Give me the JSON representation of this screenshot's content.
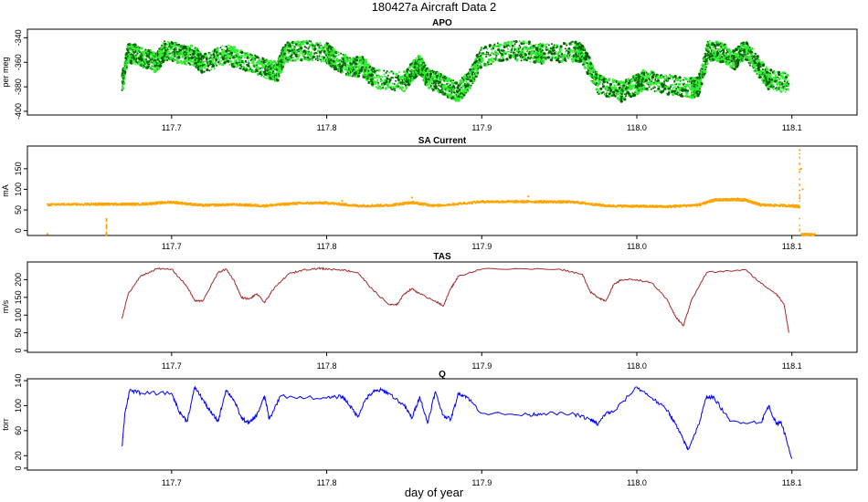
{
  "figure": {
    "title": "180427a   Aircraft Data 2",
    "xlabel": "day of year",
    "x_ticks": [
      "117.7",
      "117.8",
      "117.9",
      "118.0",
      "118.1"
    ],
    "x_tick_values": [
      117.7,
      117.8,
      117.9,
      118.0,
      118.1
    ]
  },
  "chart_data": [
    {
      "type": "scatter",
      "title": "APO",
      "ylabel": "per meg",
      "xlim": [
        117.607,
        118.142
      ],
      "ylim": [
        -403,
        -333
      ],
      "yticks": [
        -400,
        -380,
        -360,
        -340
      ],
      "colors": {
        "light": "#33ee33",
        "dark": "#006400"
      },
      "series": [
        {
          "name": "APO",
          "x": [
            117.668,
            117.672,
            117.68,
            117.69,
            117.696,
            117.705,
            117.715,
            117.72,
            117.735,
            117.745,
            117.76,
            117.768,
            117.773,
            117.785,
            117.8,
            117.805,
            117.815,
            117.823,
            117.83,
            117.85,
            117.857,
            117.86,
            117.865,
            117.875,
            117.885,
            117.893,
            117.9,
            117.92,
            117.935,
            117.94,
            117.96,
            117.965,
            117.975,
            117.99,
            118.0,
            118.005,
            118.02,
            118.035,
            118.04,
            118.046,
            118.055,
            118.063,
            118.07,
            118.078,
            118.085,
            118.098
          ],
          "y": [
            -378,
            -352,
            -355,
            -360,
            -350,
            -353,
            -355,
            -362,
            -353,
            -358,
            -365,
            -368,
            -352,
            -350,
            -352,
            -358,
            -364,
            -363,
            -373,
            -376,
            -365,
            -362,
            -373,
            -378,
            -385,
            -372,
            -355,
            -350,
            -352,
            -353,
            -351,
            -353,
            -378,
            -384,
            -378,
            -374,
            -378,
            -381,
            -380,
            -350,
            -352,
            -358,
            -350,
            -363,
            -374,
            -377
          ]
        }
      ]
    },
    {
      "type": "scatter",
      "title": "SA Current",
      "ylabel": "mA",
      "xlim": [
        117.607,
        118.142
      ],
      "ylim": [
        -12,
        205
      ],
      "yticks": [
        0,
        50,
        100,
        150
      ],
      "colors": {
        "main": "#ffa500"
      },
      "series": [
        {
          "name": "SA Current",
          "x": [
            117.62,
            117.65,
            117.66,
            117.68,
            117.7,
            117.72,
            117.74,
            117.76,
            117.78,
            117.8,
            117.82,
            117.84,
            117.855,
            117.87,
            117.9,
            117.92,
            117.94,
            117.96,
            117.98,
            118.0,
            118.02,
            118.04,
            118.05,
            118.06,
            118.07,
            118.08,
            118.1,
            118.105
          ],
          "y": [
            63,
            64,
            64,
            64,
            69,
            61,
            63,
            60,
            66,
            67,
            60,
            61,
            68,
            60,
            70,
            70,
            70,
            69,
            60,
            59,
            58,
            62,
            74,
            75,
            74,
            62,
            60,
            58
          ]
        }
      ],
      "outliers": {
        "x": [
          117.62,
          117.658,
          117.658,
          117.81,
          117.855,
          117.93,
          118.065,
          118.105,
          118.106,
          118.107
        ],
        "y": [
          -8,
          -10,
          28,
          72,
          80,
          83,
          78,
          195,
          150,
          100
        ]
      },
      "drops": {
        "x": [
          118.107,
          118.1095,
          118.112,
          118.114
        ],
        "y": [
          -10,
          -12,
          -10,
          -11
        ]
      }
    },
    {
      "type": "line",
      "title": "TAS",
      "ylabel": "m/s",
      "xlim": [
        117.607,
        118.142
      ],
      "ylim": [
        -5,
        250
      ],
      "yticks": [
        0,
        50,
        100,
        150,
        200
      ],
      "color": "#a52a2a",
      "x": [
        117.668,
        117.672,
        117.68,
        117.69,
        117.7,
        117.71,
        117.715,
        117.72,
        117.73,
        117.735,
        117.74,
        117.745,
        117.75,
        117.755,
        117.76,
        117.765,
        117.775,
        117.785,
        117.795,
        117.8,
        117.81,
        117.82,
        117.83,
        117.84,
        117.845,
        117.85,
        117.855,
        117.86,
        117.87,
        117.875,
        117.88,
        117.885,
        117.9,
        117.95,
        117.965,
        117.97,
        117.975,
        117.98,
        117.985,
        117.99,
        118.0,
        118.01,
        118.02,
        118.025,
        118.03,
        118.035,
        118.045,
        118.07,
        118.08,
        118.09,
        118.095,
        118.098
      ],
      "y": [
        90,
        160,
        210,
        230,
        230,
        180,
        140,
        140,
        220,
        230,
        200,
        150,
        145,
        160,
        135,
        170,
        215,
        228,
        232,
        230,
        228,
        220,
        170,
        130,
        128,
        160,
        175,
        160,
        140,
        125,
        175,
        210,
        230,
        230,
        215,
        165,
        150,
        140,
        185,
        200,
        200,
        190,
        140,
        95,
        70,
        140,
        220,
        228,
        190,
        160,
        130,
        50
      ]
    },
    {
      "type": "line",
      "title": "Q",
      "ylabel": "torr",
      "xlim": [
        117.607,
        118.142
      ],
      "ylim": [
        -3,
        143
      ],
      "yticks": [
        0,
        20,
        60,
        100,
        140
      ],
      "color": "#0000ff",
      "x": [
        117.668,
        117.67,
        117.673,
        117.68,
        117.7,
        117.705,
        117.71,
        117.715,
        117.72,
        117.725,
        117.73,
        117.735,
        117.74,
        117.745,
        117.75,
        117.755,
        117.76,
        117.763,
        117.77,
        117.8,
        117.81,
        117.815,
        117.82,
        117.825,
        117.83,
        117.835,
        117.84,
        117.85,
        117.855,
        117.86,
        117.865,
        117.87,
        117.875,
        117.88,
        117.885,
        117.89,
        117.9,
        117.93,
        117.94,
        117.96,
        117.97,
        117.975,
        117.98,
        117.985,
        118.0,
        118.01,
        118.02,
        118.025,
        118.03,
        118.033,
        118.04,
        118.045,
        118.05,
        118.06,
        118.08,
        118.085,
        118.09,
        118.093,
        118.1
      ],
      "y": [
        35,
        90,
        125,
        120,
        120,
        90,
        75,
        130,
        110,
        90,
        75,
        125,
        110,
        80,
        72,
        85,
        115,
        78,
        115,
        112,
        115,
        100,
        82,
        110,
        122,
        125,
        120,
        100,
        80,
        115,
        72,
        122,
        85,
        78,
        120,
        115,
        88,
        85,
        88,
        86,
        78,
        70,
        88,
        90,
        130,
        112,
        92,
        70,
        45,
        30,
        70,
        115,
        112,
        75,
        73,
        100,
        70,
        75,
        15
      ]
    }
  ]
}
